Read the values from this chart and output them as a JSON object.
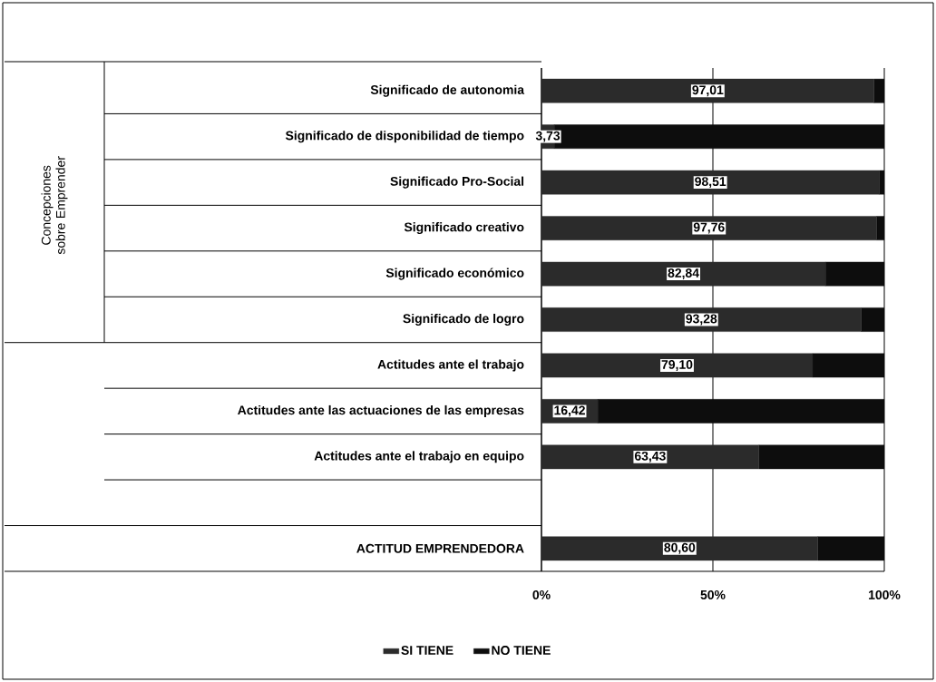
{
  "chart_data": {
    "type": "bar",
    "orientation": "horizontal",
    "stacked": true,
    "categories": [
      "Significado de autonomia",
      "Significado de disponibilidad de tiempo",
      "Significado Pro-Social",
      "Significado creativo",
      "Significado económico",
      "Significado de logro",
      "Actitudes ante el trabajo",
      "Actitudes ante las actuaciones de las empresas",
      "Actitudes ante el trabajo en equipo",
      null,
      "ACTITUD EMPRENDEDORA"
    ],
    "series": [
      {
        "name": "SI TIENE",
        "color": "#2b2b2b",
        "values": [
          97.01,
          3.73,
          98.51,
          97.76,
          82.84,
          93.28,
          79.1,
          16.42,
          63.43,
          null,
          80.6
        ],
        "value_labels": [
          "97,01",
          "3,73",
          "98,51",
          "97,76",
          "82,84",
          "93,28",
          "79,10",
          "16,42",
          "63,43",
          null,
          "80,60"
        ]
      },
      {
        "name": "NO TIENE",
        "color": "#0d0d0d",
        "values": [
          2.99,
          96.27,
          1.49,
          2.24,
          17.16,
          6.72,
          20.9,
          83.58,
          36.57,
          null,
          19.4
        ]
      }
    ],
    "xlim": [
      0,
      100
    ],
    "xticks": [
      {
        "value": 0,
        "label": "0%"
      },
      {
        "value": 50,
        "label": "50%"
      },
      {
        "value": 100,
        "label": "100%"
      }
    ],
    "grid": "x",
    "legend": "bottom",
    "annotations": [
      "Concepciones sobre Emprender"
    ]
  }
}
